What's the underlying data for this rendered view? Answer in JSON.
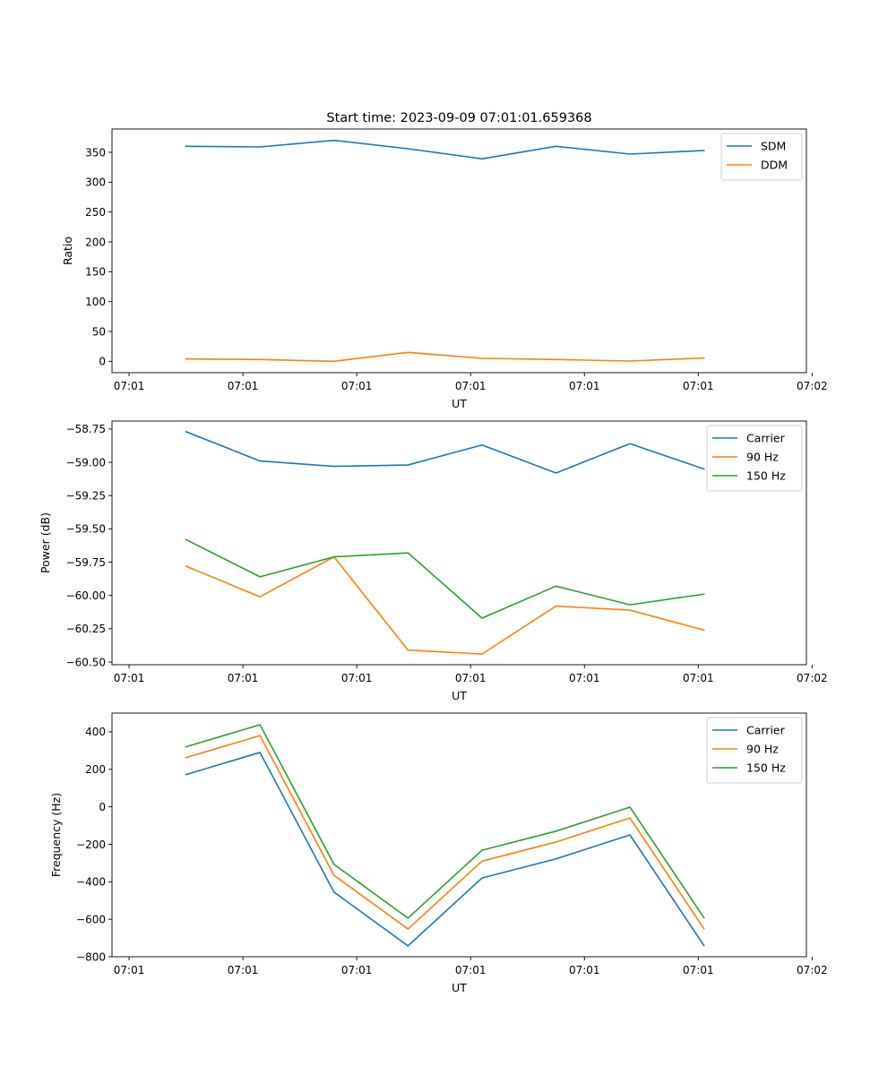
{
  "chart_data": [
    {
      "type": "line",
      "title": "Start time: 2023-09-09 07:01:01.659368",
      "xlabel": "UT",
      "ylabel": "Ratio",
      "x": [
        0.5,
        1.15,
        1.8,
        2.45,
        3.1,
        3.75,
        4.4,
        5.05
      ],
      "xlim": [
        -0.15,
        5.95
      ],
      "x_ticks": [
        0,
        1,
        2,
        3,
        4,
        5,
        6
      ],
      "x_tick_labels": [
        "07:01",
        "07:01",
        "07:01",
        "07:01",
        "07:01",
        "07:01",
        "07:02"
      ],
      "ylim": [
        -19,
        389
      ],
      "y_ticks": [
        0,
        50,
        100,
        150,
        200,
        250,
        300,
        350
      ],
      "y_tick_labels": [
        "0",
        "50",
        "100",
        "150",
        "200",
        "250",
        "300",
        "350"
      ],
      "legend_position": "top-right",
      "series": [
        {
          "name": "SDM",
          "color": "#1f77b4",
          "values": [
            360,
            359,
            370,
            356,
            339,
            360,
            347,
            353
          ]
        },
        {
          "name": "DDM",
          "color": "#ff7f0e",
          "values": [
            4,
            3,
            0,
            15,
            5,
            3,
            0.5,
            5.5
          ]
        }
      ]
    },
    {
      "type": "line",
      "title": "",
      "xlabel": "UT",
      "ylabel": "Power (dB)",
      "x": [
        0.5,
        1.15,
        1.8,
        2.45,
        3.1,
        3.75,
        4.4,
        5.05
      ],
      "xlim": [
        -0.15,
        5.95
      ],
      "x_ticks": [
        0,
        1,
        2,
        3,
        4,
        5,
        6
      ],
      "x_tick_labels": [
        "07:01",
        "07:01",
        "07:01",
        "07:01",
        "07:01",
        "07:01",
        "07:02"
      ],
      "ylim": [
        -60.52,
        -58.69
      ],
      "y_ticks": [
        -60.5,
        -60.25,
        -60.0,
        -59.75,
        -59.5,
        -59.25,
        -59.0,
        -58.75
      ],
      "y_tick_labels": [
        "−60.50",
        "−60.25",
        "−60.00",
        "−59.75",
        "−59.50",
        "−59.25",
        "−59.00",
        "−58.75"
      ],
      "legend_position": "top-right",
      "series": [
        {
          "name": "Carrier",
          "color": "#1f77b4",
          "values": [
            -58.77,
            -58.99,
            -59.03,
            -59.02,
            -58.87,
            -59.08,
            -58.86,
            -59.05
          ]
        },
        {
          "name": "90 Hz",
          "color": "#ff7f0e",
          "values": [
            -59.78,
            -60.01,
            -59.71,
            -60.41,
            -60.44,
            -60.08,
            -60.11,
            -60.26
          ]
        },
        {
          "name": "150 Hz",
          "color": "#2ca02c",
          "values": [
            -59.58,
            -59.86,
            -59.71,
            -59.68,
            -60.17,
            -59.93,
            -60.07,
            -59.99
          ]
        }
      ]
    },
    {
      "type": "line",
      "title": "",
      "xlabel": "UT",
      "ylabel": "Frequency (Hz)",
      "x": [
        0.5,
        1.15,
        1.8,
        2.45,
        3.1,
        3.75,
        4.4,
        5.05
      ],
      "xlim": [
        -0.15,
        5.95
      ],
      "x_ticks": [
        0,
        1,
        2,
        3,
        4,
        5,
        6
      ],
      "x_tick_labels": [
        "07:01",
        "07:01",
        "07:01",
        "07:01",
        "07:01",
        "07:01",
        "07:02"
      ],
      "ylim": [
        -800,
        500
      ],
      "y_ticks": [
        -800,
        -600,
        -400,
        -200,
        0,
        200,
        400
      ],
      "y_tick_labels": [
        "−800",
        "−600",
        "−400",
        "−200",
        "0",
        "200",
        "400"
      ],
      "legend_position": "top-right",
      "series": [
        {
          "name": "Carrier",
          "color": "#1f77b4",
          "values": [
            172,
            290,
            -455,
            -742,
            -380,
            -278,
            -150,
            -740
          ]
        },
        {
          "name": "90 Hz",
          "color": "#ff7f0e",
          "values": [
            262,
            380,
            -365,
            -652,
            -290,
            -188,
            -60,
            -650
          ]
        },
        {
          "name": "150 Hz",
          "color": "#2ca02c",
          "values": [
            320,
            438,
            -307,
            -594,
            -232,
            -130,
            -2,
            -592
          ]
        }
      ]
    }
  ]
}
